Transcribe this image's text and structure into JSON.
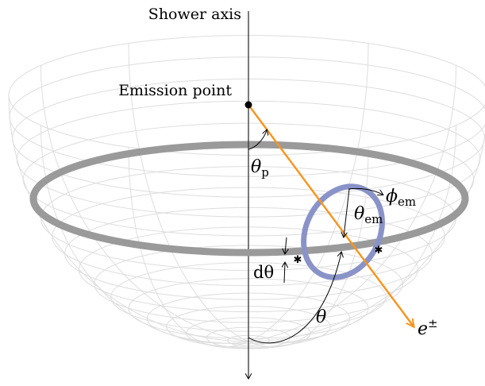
{
  "labels": {
    "shower_axis": "Shower axis",
    "emission_point": "Emission point",
    "theta_p": "θ",
    "theta_p_sub": "p",
    "phi_em": "ϕ",
    "phi_em_sub": "em",
    "theta_em": "θ",
    "theta_em_sub": "em",
    "dtheta": "dθ",
    "theta": "θ",
    "particle": "e",
    "particle_sup": "±"
  },
  "colors": {
    "axis": "#333333",
    "trajectory": "#f7941d",
    "emission_ring": "#8a93c8",
    "band": "#9a9a9a",
    "hemisphere_grid": "#dddddd",
    "emission_point": "#000000"
  },
  "icons": {
    "intersection_markers": "star-marker",
    "emission_point": "filled-dot"
  }
}
